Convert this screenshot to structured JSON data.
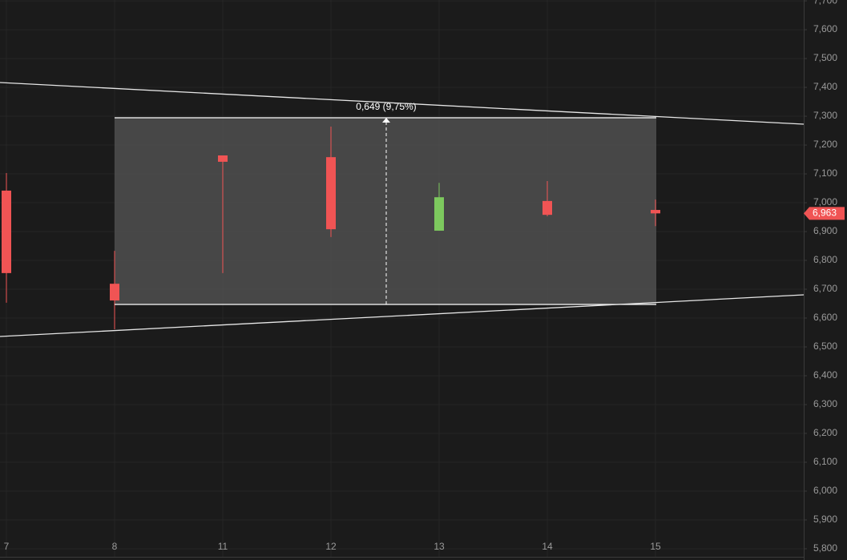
{
  "chart_data": {
    "type": "candlestick",
    "categories": [
      "7",
      "8",
      "11",
      "12",
      "13",
      "14",
      "15"
    ],
    "open": [
      7.042,
      6.719,
      7.164,
      7.158,
      6.903,
      7.006,
      6.975
    ],
    "high": [
      7.103,
      6.833,
      7.164,
      7.264,
      7.069,
      7.075,
      7.011
    ],
    "low": [
      6.653,
      6.561,
      6.756,
      6.881,
      6.903,
      6.953,
      6.919
    ],
    "close": [
      6.756,
      6.661,
      7.142,
      6.908,
      7.019,
      6.958,
      6.963
    ],
    "up_color": "#7dc95e",
    "down_color": "#f05454",
    "ylim": [
      5.761,
      7.703
    ],
    "yticks": [
      {
        "value": 7.7,
        "label": "7,700"
      },
      {
        "value": 7.6,
        "label": "7,600"
      },
      {
        "value": 7.5,
        "label": "7,500"
      },
      {
        "value": 7.4,
        "label": "7,400"
      },
      {
        "value": 7.3,
        "label": "7,300"
      },
      {
        "value": 7.2,
        "label": "7,200"
      },
      {
        "value": 7.1,
        "label": "7,100"
      },
      {
        "value": 7.0,
        "label": "7,000"
      },
      {
        "value": 6.9,
        "label": "6,900"
      },
      {
        "value": 6.8,
        "label": "6,800"
      },
      {
        "value": 6.7,
        "label": "6,700"
      },
      {
        "value": 6.6,
        "label": "6,600"
      },
      {
        "value": 6.5,
        "label": "6,500"
      },
      {
        "value": 6.4,
        "label": "6,400"
      },
      {
        "value": 6.3,
        "label": "6,300"
      },
      {
        "value": 6.2,
        "label": "6,200"
      },
      {
        "value": 6.1,
        "label": "6,100"
      },
      {
        "value": 6.0,
        "label": "6,000"
      },
      {
        "value": 5.9,
        "label": "5,900"
      },
      {
        "value": 5.8,
        "label": "5,800"
      }
    ],
    "grid": true,
    "last_price": {
      "value": 6.963,
      "label": "6,963"
    },
    "measure_label": "0,649 (9,75%)"
  }
}
